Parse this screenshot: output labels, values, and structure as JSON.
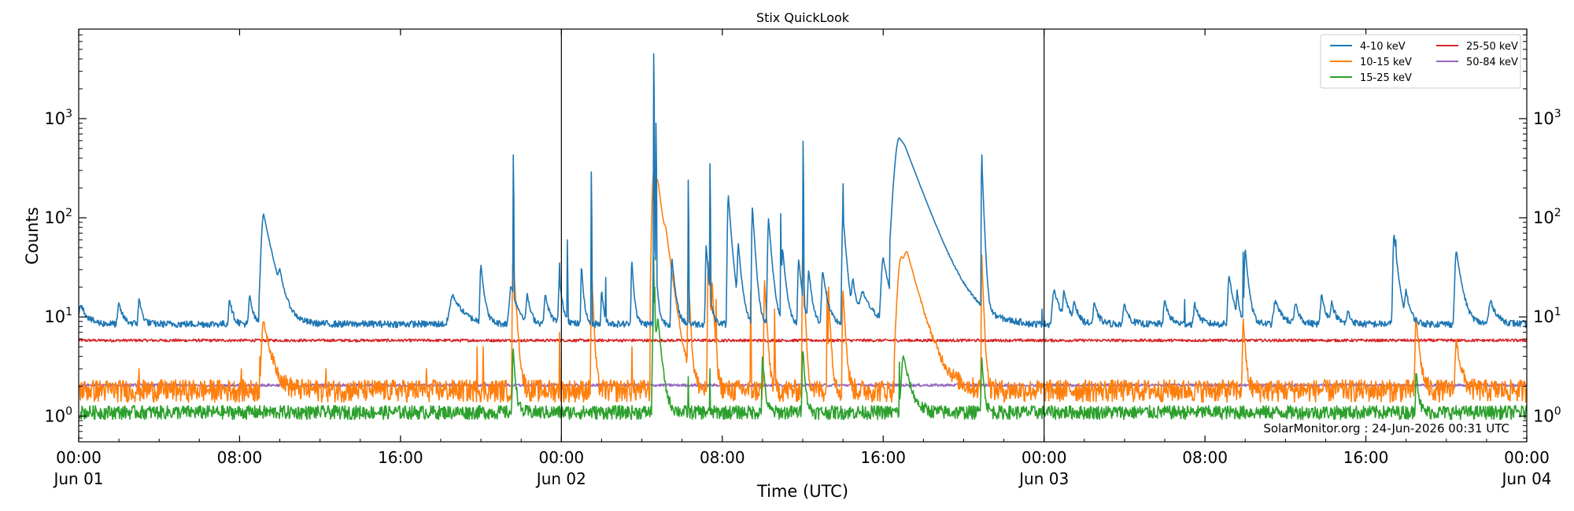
{
  "chart_data": {
    "type": "line",
    "title": "Stix QuickLook",
    "xlabel": "Time (UTC)",
    "ylabel": "Counts",
    "y_scale": "log",
    "ylim": [
      0.55,
      8000
    ],
    "xlim": [
      "2026-06-01T00:00",
      "2026-06-04T00:00"
    ],
    "grid": false,
    "legend_position": "top-right",
    "day_boundaries": [
      "2026-06-02T00:00",
      "2026-06-03T00:00"
    ],
    "x_ticks": [
      {
        "hour": 0,
        "label": "00:00",
        "date": "Jun 01"
      },
      {
        "hour": 8,
        "label": "08:00",
        "date": ""
      },
      {
        "hour": 16,
        "label": "16:00",
        "date": ""
      },
      {
        "hour": 24,
        "label": "00:00",
        "date": "Jun 02"
      },
      {
        "hour": 32,
        "label": "08:00",
        "date": ""
      },
      {
        "hour": 40,
        "label": "16:00",
        "date": ""
      },
      {
        "hour": 48,
        "label": "00:00",
        "date": "Jun 03"
      },
      {
        "hour": 56,
        "label": "08:00",
        "date": ""
      },
      {
        "hour": 64,
        "label": "16:00",
        "date": ""
      },
      {
        "hour": 72,
        "label": "00:00",
        "date": "Jun 04"
      }
    ],
    "y_ticks": [
      {
        "value": 1,
        "base": "10",
        "exp": "0"
      },
      {
        "value": 10,
        "base": "10",
        "exp": "1"
      },
      {
        "value": 100,
        "base": "10",
        "exp": "2"
      },
      {
        "value": 1000,
        "base": "10",
        "exp": "3"
      }
    ],
    "annotation": "SolarMonitor.org : 24-Jun-2026 00:31 UTC",
    "series": [
      {
        "name": "4-10 keV",
        "color": "#1f77b4",
        "baseline": 8.5,
        "noise": 0.05,
        "events": [
          [
            0.1,
            5,
            0.3
          ],
          [
            2.0,
            5,
            0.2
          ],
          [
            3.0,
            7,
            0.15
          ],
          [
            7.5,
            7,
            0.15
          ],
          [
            8.5,
            8,
            0.15
          ],
          [
            9.2,
            100,
            0.4
          ],
          [
            10.0,
            8,
            0.2
          ],
          [
            18.6,
            8,
            0.5
          ],
          [
            20.0,
            25,
            0.15
          ],
          [
            21.5,
            12,
            0.3
          ],
          [
            22.3,
            8,
            0.15
          ],
          [
            23.2,
            8,
            0.2
          ],
          [
            23.9,
            15,
            0.15
          ],
          [
            25.0,
            25,
            0.1
          ],
          [
            26.0,
            10,
            0.1
          ],
          [
            27.5,
            30,
            0.1
          ],
          [
            28.6,
            60,
            0.1
          ],
          [
            29.5,
            30,
            0.15
          ],
          [
            31.2,
            45,
            0.12
          ],
          [
            32.3,
            160,
            0.15
          ],
          [
            32.8,
            40,
            0.15
          ],
          [
            33.5,
            120,
            0.12
          ],
          [
            34.3,
            90,
            0.15
          ],
          [
            35.0,
            40,
            0.15
          ],
          [
            35.8,
            30,
            0.15
          ],
          [
            36.3,
            20,
            0.15
          ],
          [
            37.0,
            20,
            0.2
          ],
          [
            38.0,
            100,
            0.15
          ],
          [
            38.5,
            12,
            0.2
          ],
          [
            40.0,
            30,
            0.3
          ],
          [
            39.0,
            8,
            0.5
          ],
          [
            40.8,
            600,
            0.8
          ],
          [
            41.1,
            100,
            0.8
          ],
          [
            44.9,
            400,
            0.08
          ],
          [
            48.5,
            10,
            0.3
          ],
          [
            49.0,
            8,
            0.2
          ],
          [
            49.5,
            5,
            0.2
          ],
          [
            50.5,
            5,
            0.2
          ],
          [
            52.0,
            5,
            0.2
          ],
          [
            54.0,
            6,
            0.2
          ],
          [
            55.5,
            5,
            0.2
          ],
          [
            57.2,
            18,
            0.2
          ],
          [
            57.6,
            8,
            0.1
          ],
          [
            58.0,
            40,
            0.15
          ],
          [
            59.5,
            6,
            0.3
          ],
          [
            60.5,
            5,
            0.2
          ],
          [
            61.8,
            8,
            0.2
          ],
          [
            62.3,
            5,
            0.2
          ],
          [
            63.1,
            3,
            0.15
          ],
          [
            65.4,
            60,
            0.18
          ],
          [
            66.0,
            8,
            0.2
          ],
          [
            68.5,
            38,
            0.25
          ],
          [
            70.2,
            6,
            0.3
          ]
        ],
        "spikes": [
          [
            21.6,
            430
          ],
          [
            23.9,
            35
          ],
          [
            24.3,
            60
          ],
          [
            25.5,
            290
          ],
          [
            26.2,
            25
          ],
          [
            28.6,
            4500
          ],
          [
            28.7,
            900
          ],
          [
            30.3,
            240
          ],
          [
            31.4,
            350
          ],
          [
            34.9,
            110
          ],
          [
            36.0,
            590
          ],
          [
            38.0,
            220
          ],
          [
            44.9,
            430
          ],
          [
            47.9,
            12
          ],
          [
            55.0,
            15
          ],
          [
            57.9,
            45
          ],
          [
            65.5,
            60
          ]
        ]
      },
      {
        "name": "10-15 keV",
        "color": "#ff7f0e",
        "baseline": 1.85,
        "noise": 0.16,
        "events": [
          [
            9.2,
            7,
            0.35
          ],
          [
            21.6,
            40,
            0.12
          ],
          [
            25.5,
            30,
            0.08
          ],
          [
            28.6,
            300,
            0.3
          ],
          [
            28.8,
            80,
            0.25
          ],
          [
            29.2,
            20,
            0.25
          ],
          [
            30.3,
            30,
            0.08
          ],
          [
            31.3,
            35,
            0.1
          ],
          [
            31.5,
            15,
            0.1
          ],
          [
            34.1,
            22,
            0.1
          ],
          [
            36.0,
            45,
            0.08
          ],
          [
            37.3,
            12,
            0.1
          ],
          [
            38.0,
            18,
            0.1
          ],
          [
            40.9,
            38,
            0.6
          ],
          [
            41.2,
            20,
            0.5
          ],
          [
            44.9,
            38,
            0.08
          ],
          [
            57.9,
            8,
            0.1
          ],
          [
            66.5,
            8,
            0.15
          ],
          [
            68.5,
            4,
            0.2
          ]
        ],
        "spikes": [
          [
            3.0,
            3
          ],
          [
            8.1,
            3
          ],
          [
            9.0,
            4
          ],
          [
            12.3,
            3
          ],
          [
            17.3,
            3
          ],
          [
            19.8,
            5
          ],
          [
            20.1,
            5
          ],
          [
            23.9,
            7
          ],
          [
            25.5,
            30
          ],
          [
            27.5,
            5
          ],
          [
            28.5,
            10
          ],
          [
            31.4,
            30
          ],
          [
            31.7,
            15
          ],
          [
            33.4,
            18
          ],
          [
            34.6,
            12
          ],
          [
            36.0,
            40
          ],
          [
            37.2,
            18
          ],
          [
            37.3,
            20
          ],
          [
            44.9,
            42
          ],
          [
            57.9,
            8
          ]
        ]
      },
      {
        "name": "15-25 keV",
        "color": "#2ca02c",
        "baseline": 1.1,
        "noise": 0.1,
        "events": [
          [
            21.6,
            4,
            0.1
          ],
          [
            28.6,
            10,
            0.2
          ],
          [
            28.8,
            5,
            0.15
          ],
          [
            34.0,
            3,
            0.1
          ],
          [
            36.0,
            4,
            0.1
          ],
          [
            41.0,
            3,
            0.3
          ],
          [
            44.9,
            3,
            0.1
          ],
          [
            66.5,
            2,
            0.1
          ]
        ],
        "spikes": [
          [
            21.6,
            3
          ],
          [
            28.6,
            40
          ],
          [
            28.65,
            20
          ],
          [
            30.3,
            2.5
          ],
          [
            31.4,
            3
          ],
          [
            34.1,
            2
          ],
          [
            36.0,
            3
          ],
          [
            40.8,
            3.5
          ]
        ]
      },
      {
        "name": "25-50 keV",
        "color": "#d62728",
        "baseline": 5.8,
        "noise": 0.02,
        "events": [],
        "spikes": []
      },
      {
        "name": "50-84 keV",
        "color": "#9467bd",
        "baseline": 2.05,
        "noise": 0.02,
        "events": [],
        "spikes": []
      }
    ]
  }
}
